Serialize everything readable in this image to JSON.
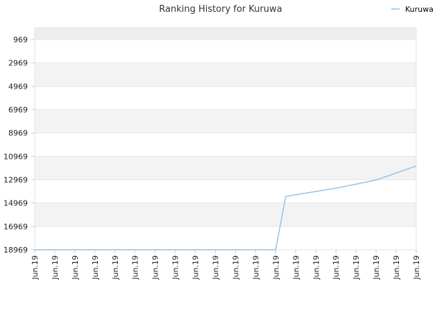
{
  "chart_data": {
    "type": "line",
    "title": "Ranking History for Kuruwa",
    "legend": {
      "position": "top-right"
    },
    "y_reversed": true,
    "ylim": [
      969,
      18969
    ],
    "y_ticks": [
      "969",
      "2969",
      "4969",
      "6969",
      "8969",
      "10969",
      "12969",
      "14969",
      "16969",
      "18969"
    ],
    "x_tick_labels": [
      "Jun.19",
      "Jun.19",
      "Jun.19",
      "Jun.19",
      "Jun.19",
      "Jun.19",
      "Jun.19",
      "Jun.19",
      "Jun.19",
      "Jun.19",
      "Jun.19",
      "Jun.19",
      "Jun.19",
      "Jun.19",
      "Jun.19",
      "Jun.19",
      "Jun.19",
      "Jun.19",
      "Jun.19",
      "Jun.19"
    ],
    "series": [
      {
        "name": "Kuruwa",
        "color": "#90c4ee",
        "x": [
          0,
          12,
          12.5,
          15,
          17,
          19
        ],
        "values": [
          18969,
          18969,
          14400,
          13700,
          13000,
          11800
        ]
      }
    ],
    "grid": true,
    "band_colors": [
      "#f3f3f3",
      "#ffffff"
    ]
  }
}
